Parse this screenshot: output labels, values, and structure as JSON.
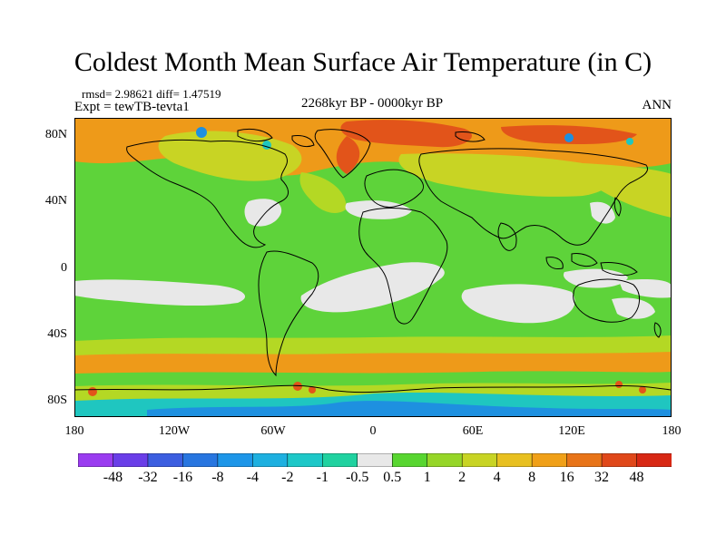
{
  "title": "Coldest Month Mean Surface Air Temperature (in C)",
  "stats": "rmsd= 2.98621 diff= 1.47519",
  "experiment": "Expt = tewTB-tevta1",
  "period": "2268kyr BP - 0000kyr BP",
  "season": "ANN",
  "map": {
    "y_axis_labels": [
      "80N",
      "40N",
      "0",
      "40S",
      "80S"
    ],
    "x_axis_labels": [
      "180",
      "120W",
      "60W",
      "0",
      "60E",
      "120E",
      "180"
    ],
    "lat_range": [
      -90,
      90
    ],
    "lon_range": [
      -180,
      180
    ],
    "ocean_green": "#5ed33a",
    "near_zero_white": "#e8e8e8",
    "warm_yellow": "#b4d824",
    "warm_orange": "#ee9a19",
    "hot_red": "#e2541a",
    "cool_cyan": "#1fc6c0",
    "cool_blue": "#1e90e0"
  },
  "colorbar": {
    "labels": [
      "-48",
      "-32",
      "-16",
      "-8",
      "-4",
      "-2",
      "-1",
      "-0.5",
      "0.5",
      "1",
      "2",
      "4",
      "8",
      "16",
      "32",
      "48"
    ],
    "colors": [
      "#9a3cf0",
      "#6a3ee8",
      "#3c5ee0",
      "#2876e0",
      "#1e96e8",
      "#1eb0e0",
      "#1ec8c8",
      "#20d2a0",
      "#e8e8e8",
      "#58d630",
      "#96d628",
      "#c8d424",
      "#e8c020",
      "#f0a018",
      "#e87418",
      "#e0481a",
      "#d82814"
    ]
  }
}
